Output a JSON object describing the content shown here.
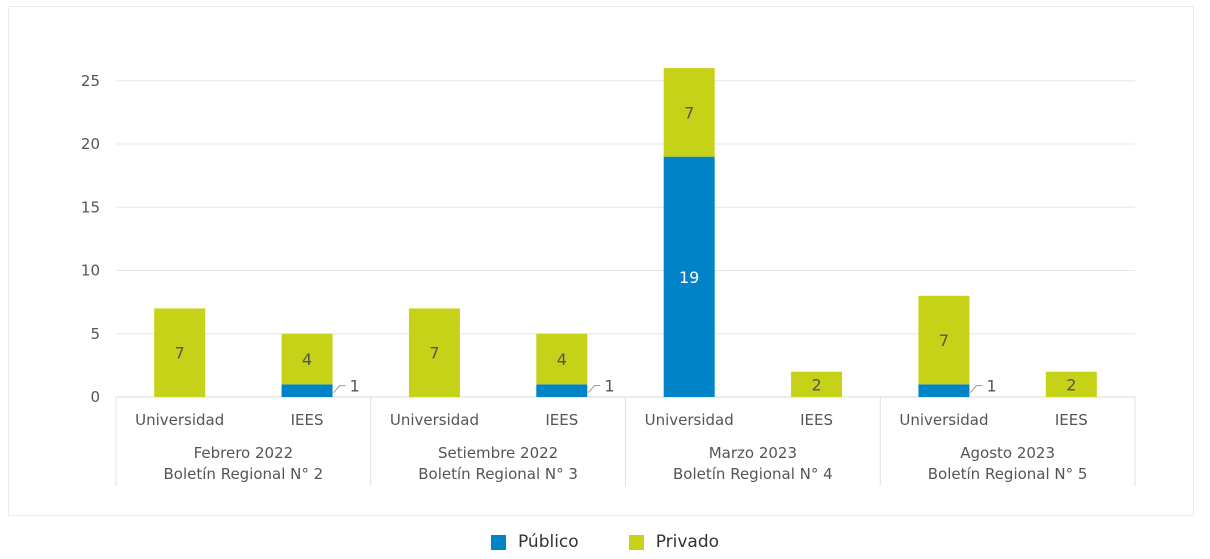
{
  "chart_data": {
    "type": "bar",
    "stacked": true,
    "groups": [
      {
        "label_line1": "Febrero 2022",
        "label_line2": "Boletín Regional N° 2",
        "categories": [
          "Universidad",
          "IEES"
        ]
      },
      {
        "label_line1": "Setiembre 2022",
        "label_line2": "Boletín Regional N° 3",
        "categories": [
          "Universidad",
          "IEES"
        ]
      },
      {
        "label_line1": "Marzo 2023",
        "label_line2": "Boletín Regional N° 4",
        "categories": [
          "Universidad",
          "IEES"
        ]
      },
      {
        "label_line1": "Agosto 2023",
        "label_line2": "Boletín Regional N° 5",
        "categories": [
          "Universidad",
          "IEES"
        ]
      }
    ],
    "categories": [
      "Universidad",
      "IEES",
      "Universidad",
      "IEES",
      "Universidad",
      "IEES",
      "Universidad",
      "IEES"
    ],
    "series": [
      {
        "name": "Público",
        "color": "#0083c7",
        "values": [
          0,
          1,
          0,
          1,
          19,
          0,
          1,
          0
        ],
        "labels": [
          "",
          "1",
          "",
          "1",
          "19",
          "",
          "1",
          ""
        ]
      },
      {
        "name": "Privado",
        "color": "#c6d217",
        "values": [
          7,
          4,
          7,
          4,
          7,
          2,
          7,
          2
        ],
        "labels": [
          "7",
          "4",
          "7",
          "4",
          "7",
          "2",
          "7",
          "2"
        ]
      }
    ],
    "yticks": [
      "0",
      "5",
      "10",
      "15",
      "20",
      "25"
    ],
    "ylim": [
      0,
      30
    ],
    "grid": true,
    "legend_position": "bottom"
  }
}
